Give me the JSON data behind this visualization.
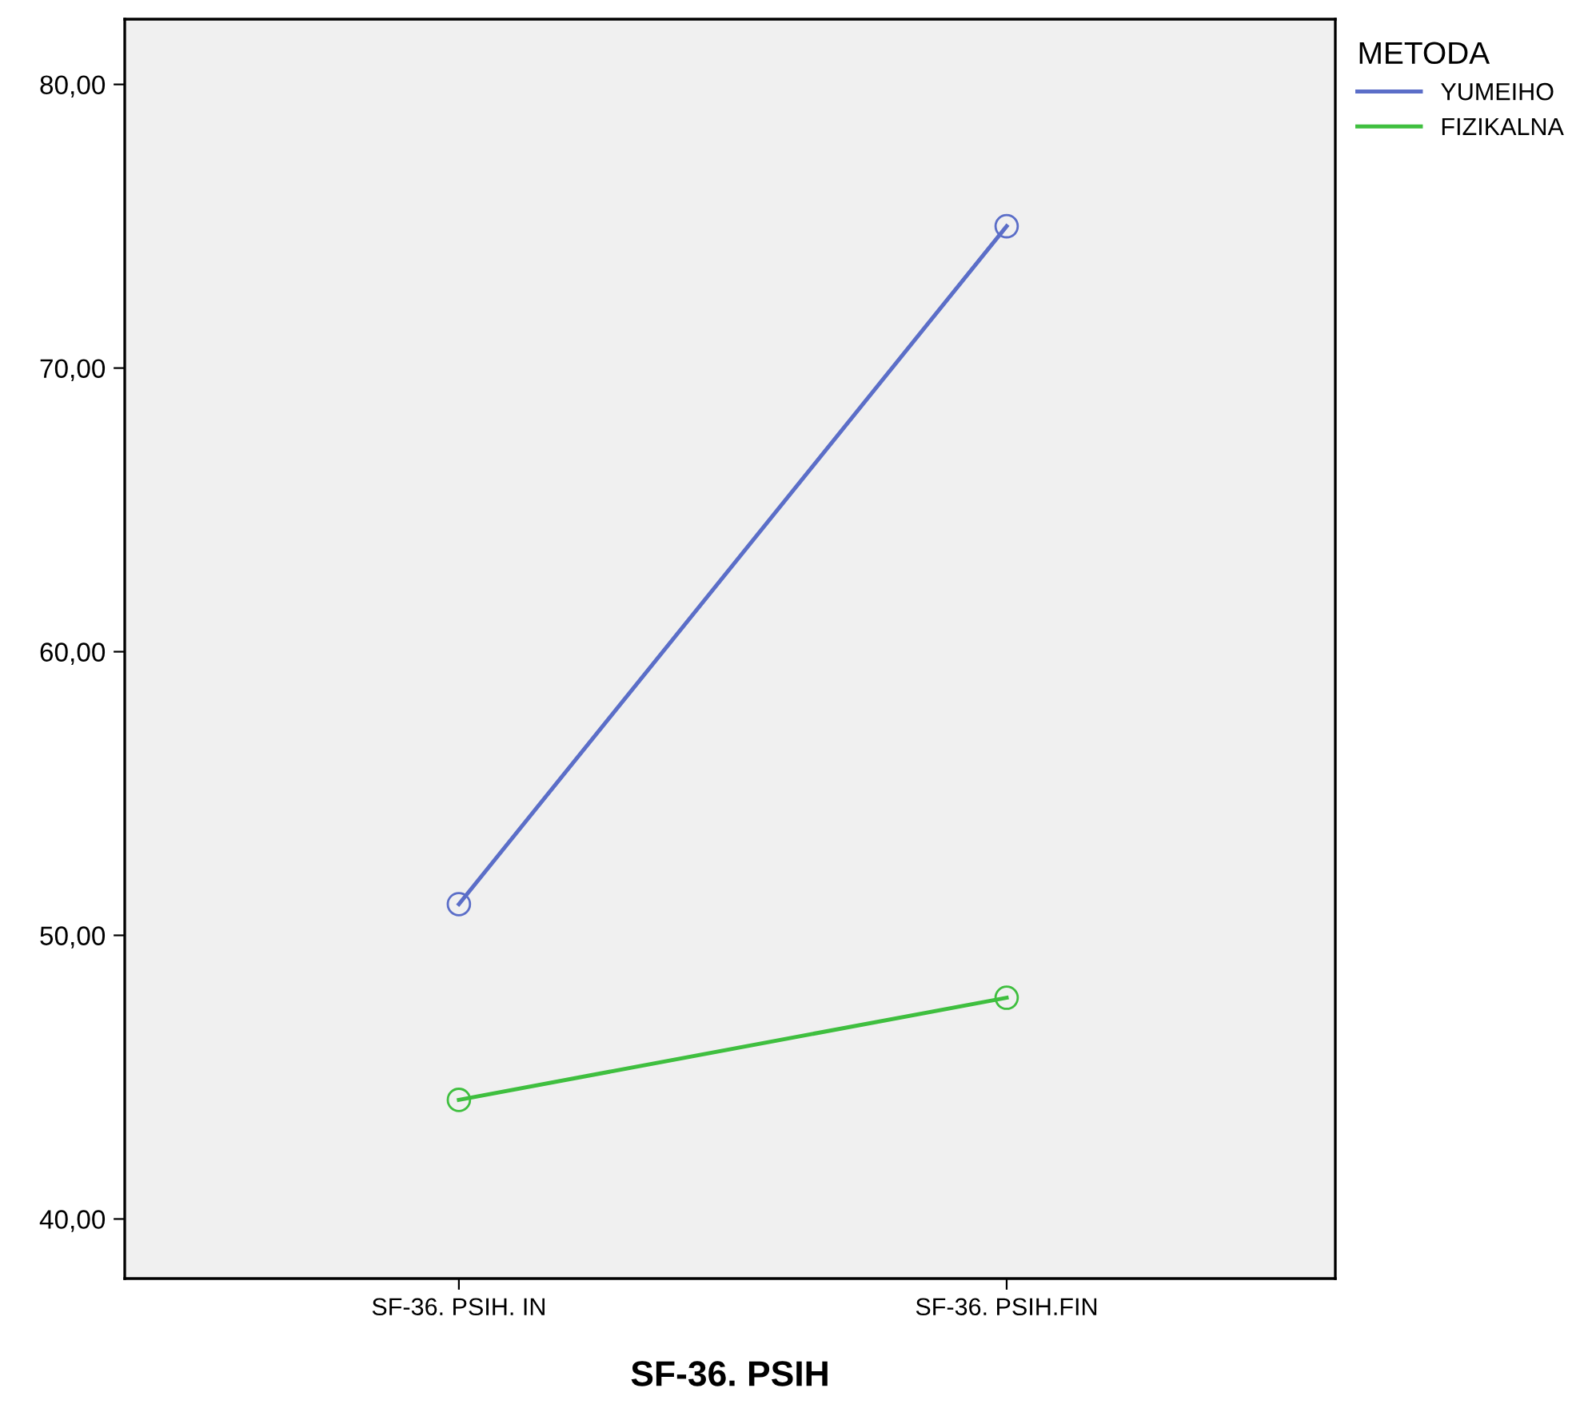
{
  "chart_data": {
    "type": "line",
    "xlabel": "SF-36. PSIH",
    "legend_title": "METODA",
    "categories": [
      "SF-36. PSIH. IN",
      "SF-36. PSIH.FIN"
    ],
    "series": [
      {
        "name": "YUMEIHO",
        "color": "#5b6ec8",
        "values": [
          51.1,
          75.0
        ]
      },
      {
        "name": "FIZIKALNA",
        "color": "#3fbf3f",
        "values": [
          44.2,
          47.8
        ]
      }
    ],
    "ylim": [
      37.9,
      82.3
    ],
    "yticks": [
      {
        "value": 40,
        "label": "40,00"
      },
      {
        "value": 50,
        "label": "50,00"
      },
      {
        "value": 60,
        "label": "60,00"
      },
      {
        "value": 70,
        "label": "70,00"
      },
      {
        "value": 80,
        "label": "80,00"
      }
    ],
    "grid": false,
    "legend": "top right",
    "marker": "circle",
    "line_style": "solid"
  }
}
